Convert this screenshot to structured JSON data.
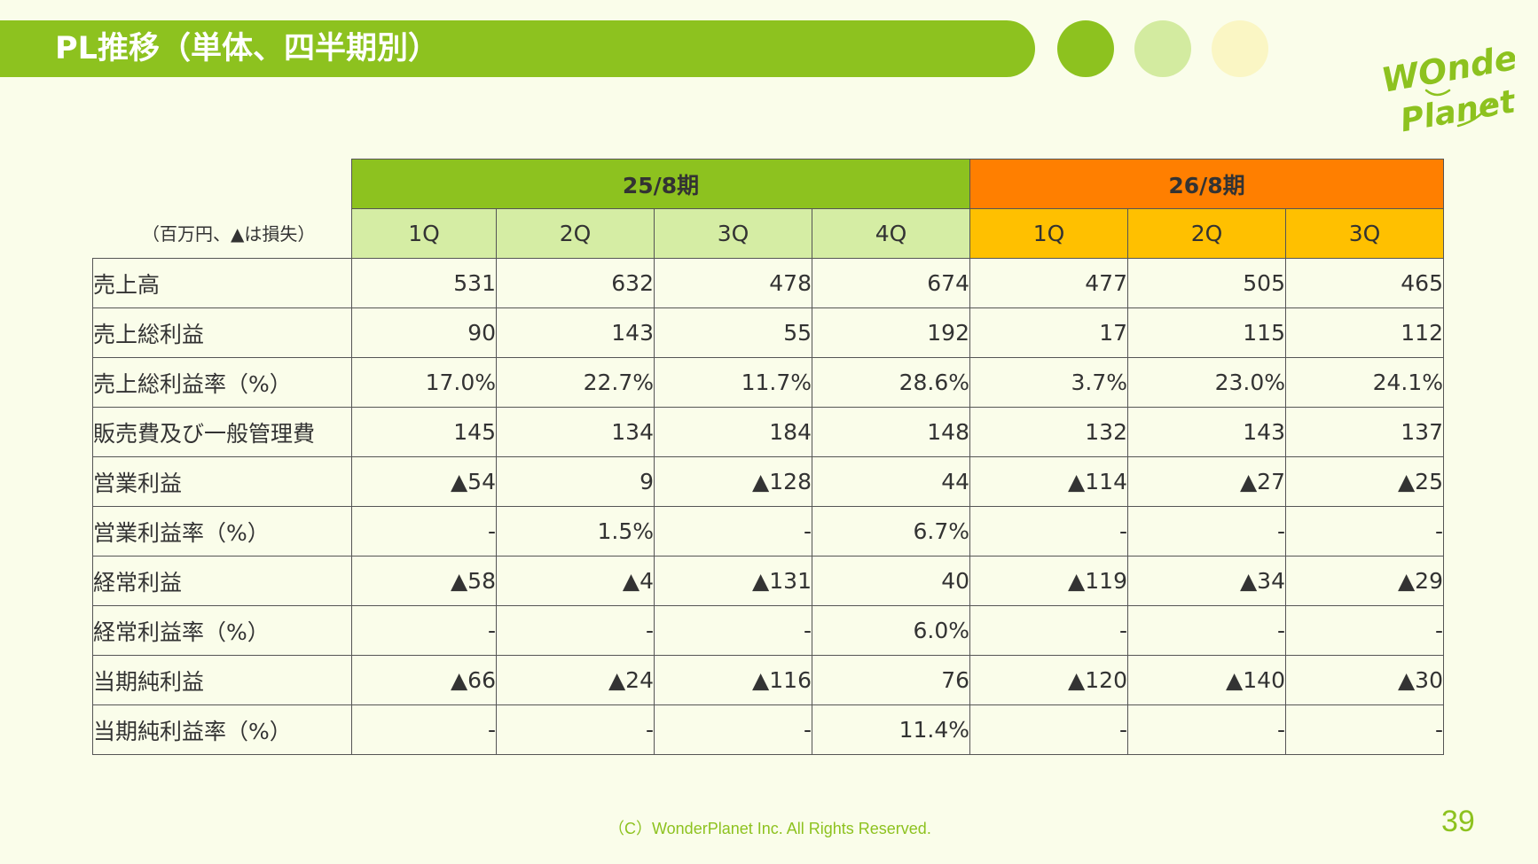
{
  "header": {
    "title": "PL推移（単体、四半期別）",
    "accent_color": "#8dc21f",
    "dot_colors": [
      "#8dc21f",
      "#d3eba0",
      "#faf6c4"
    ]
  },
  "logo": {
    "line1": "WOnder",
    "line2": "Planet"
  },
  "table": {
    "unit_note": "（百万円、▲は損失）",
    "periods": [
      {
        "label": "25/8期",
        "color": "#8dc21f",
        "quarters": [
          "1Q",
          "2Q",
          "3Q",
          "4Q"
        ]
      },
      {
        "label": "26/8期",
        "color": "#ff7f00",
        "quarters": [
          "1Q",
          "2Q",
          "3Q"
        ]
      }
    ],
    "rows": [
      {
        "label": "売上高",
        "values": [
          "531",
          "632",
          "478",
          "674",
          "477",
          "505",
          "465"
        ]
      },
      {
        "label": "売上総利益",
        "values": [
          "90",
          "143",
          "55",
          "192",
          "17",
          "115",
          "112"
        ]
      },
      {
        "label": "売上総利益率（%）",
        "values": [
          "17.0%",
          "22.7%",
          "11.7%",
          "28.6%",
          "3.7%",
          "23.0%",
          "24.1%"
        ]
      },
      {
        "label": "販売費及び一般管理費",
        "values": [
          "145",
          "134",
          "184",
          "148",
          "132",
          "143",
          "137"
        ]
      },
      {
        "label": "営業利益",
        "values": [
          "▲54",
          "9",
          "▲128",
          "44",
          "▲114",
          "▲27",
          "▲25"
        ]
      },
      {
        "label": "営業利益率（%）",
        "values": [
          "-",
          "1.5%",
          "-",
          "6.7%",
          "-",
          "-",
          "-"
        ]
      },
      {
        "label": "経常利益",
        "values": [
          "▲58",
          "▲4",
          "▲131",
          "40",
          "▲119",
          "▲34",
          "▲29"
        ]
      },
      {
        "label": "経常利益率（%）",
        "values": [
          "-",
          "-",
          "-",
          "6.0%",
          "-",
          "-",
          "-"
        ]
      },
      {
        "label": "当期純利益",
        "values": [
          "▲66",
          "▲24",
          "▲116",
          "76",
          "▲120",
          "▲140",
          "▲30"
        ]
      },
      {
        "label": "当期純利益率（%）",
        "values": [
          "-",
          "-",
          "-",
          "11.4%",
          "-",
          "-",
          "-"
        ]
      }
    ]
  },
  "footer": {
    "copyright": "（C）WonderPlanet Inc.  All Rights Reserved.",
    "page_number": "39"
  }
}
